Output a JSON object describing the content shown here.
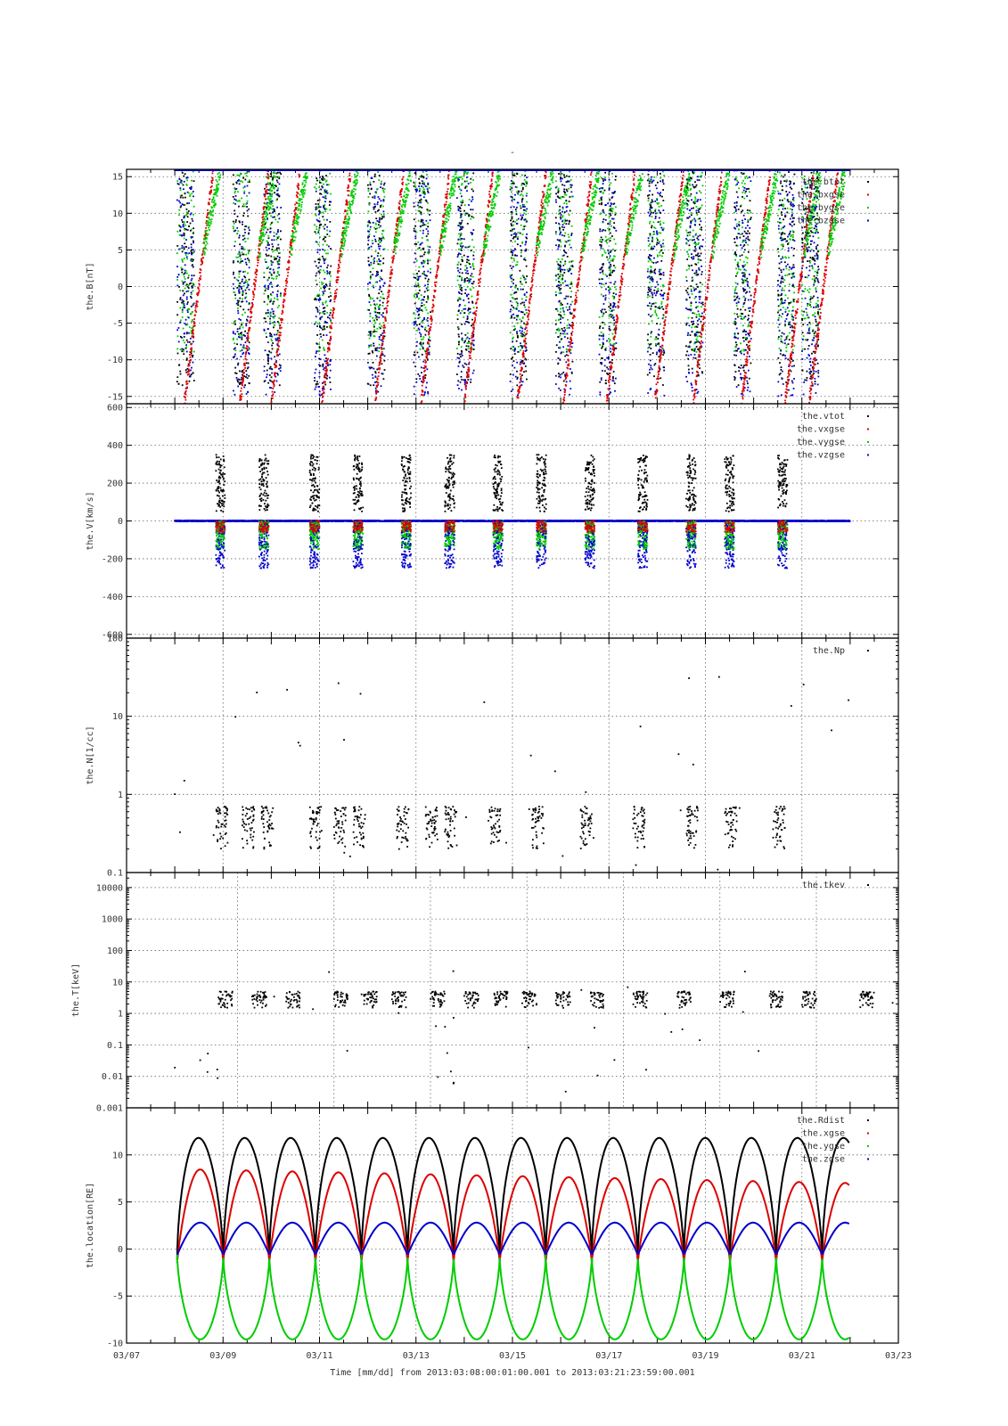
{
  "figure": {
    "title": "-",
    "xlabel": "Time [mm/dd]  from 2013:03:08:00:01:00.001  to  2013:03:21:23:59:00.001",
    "x_ticks": [
      "03/07",
      "03/09",
      "03/11",
      "03/13",
      "03/15",
      "03/17",
      "03/19",
      "03/21",
      "03/23"
    ]
  },
  "chart_data": [
    {
      "type": "scatter",
      "ylabel": "the.B[nT]",
      "x_range": [
        "03/07",
        "03/23"
      ],
      "ylim": [
        -16,
        16
      ],
      "y_ticks": [
        "15",
        "10",
        "5",
        "0",
        "-5",
        "-10",
        "-15"
      ],
      "y_tick_values": [
        15,
        10,
        5,
        0,
        -5,
        -10,
        -15
      ],
      "grid": true,
      "legend_placement": "top-right",
      "series": [
        {
          "name": "the.btot",
          "color": "#000000"
        },
        {
          "name": "the.bxgse",
          "color": "#dd0000"
        },
        {
          "name": "the.bygse",
          "color": "#00cc00"
        },
        {
          "name": "the.bzgse",
          "color": "#0000cc"
        }
      ]
    },
    {
      "type": "scatter",
      "ylabel": "the.V[km/s]",
      "x_range": [
        "03/07",
        "03/23"
      ],
      "ylim": [
        -620,
        620
      ],
      "y_ticks": [
        "600",
        "400",
        "200",
        "0",
        "-200",
        "-400",
        "-600"
      ],
      "y_tick_values": [
        600,
        400,
        200,
        0,
        -200,
        -400,
        -600
      ],
      "grid": true,
      "legend_placement": "top-right",
      "series": [
        {
          "name": "the.vtot",
          "color": "#000000"
        },
        {
          "name": "the.vxgse",
          "color": "#dd0000"
        },
        {
          "name": "the.vygse",
          "color": "#00cc00"
        },
        {
          "name": "the.vzgse",
          "color": "#0000cc"
        }
      ]
    },
    {
      "type": "scatter",
      "ylabel": "the.N[1/cc]",
      "x_range": [
        "03/07",
        "03/23"
      ],
      "y_scale": "log",
      "ylim": [
        0.1,
        100
      ],
      "y_ticks": [
        "100",
        "10",
        "1",
        "0.1"
      ],
      "y_tick_values": [
        100,
        10,
        1,
        0.1
      ],
      "grid": true,
      "legend_placement": "top-right",
      "series": [
        {
          "name": "the.Np",
          "color": "#000000"
        }
      ]
    },
    {
      "type": "scatter",
      "ylabel": "the.T[keV]",
      "x_range": [
        "03/07",
        "03/23"
      ],
      "y_scale": "log",
      "ylim": [
        0.001,
        30000
      ],
      "y_ticks": [
        "10000",
        "1000",
        "100",
        "10",
        "1",
        "0.1",
        "0.01",
        "0.001"
      ],
      "y_tick_values": [
        10000,
        1000,
        100,
        10,
        1,
        0.1,
        0.01,
        0.001
      ],
      "grid": true,
      "legend_placement": "top-right",
      "series": [
        {
          "name": "the.tkev",
          "color": "#000000"
        }
      ]
    },
    {
      "type": "line",
      "ylabel": "the.location[RE]",
      "x_range": [
        "03/07",
        "03/23"
      ],
      "ylim": [
        -10,
        15
      ],
      "y_ticks": [
        "10",
        "5",
        "0",
        "-5",
        "-10"
      ],
      "y_tick_values": [
        10,
        5,
        0,
        -5,
        -10
      ],
      "grid": true,
      "legend_placement": "top-right",
      "series": [
        {
          "name": "the.Rdist",
          "color": "#000000"
        },
        {
          "name": "the.xgse",
          "color": "#dd0000"
        },
        {
          "name": "the.ygse",
          "color": "#00cc00"
        },
        {
          "name": "the.zgse",
          "color": "#0000cc"
        }
      ]
    }
  ]
}
